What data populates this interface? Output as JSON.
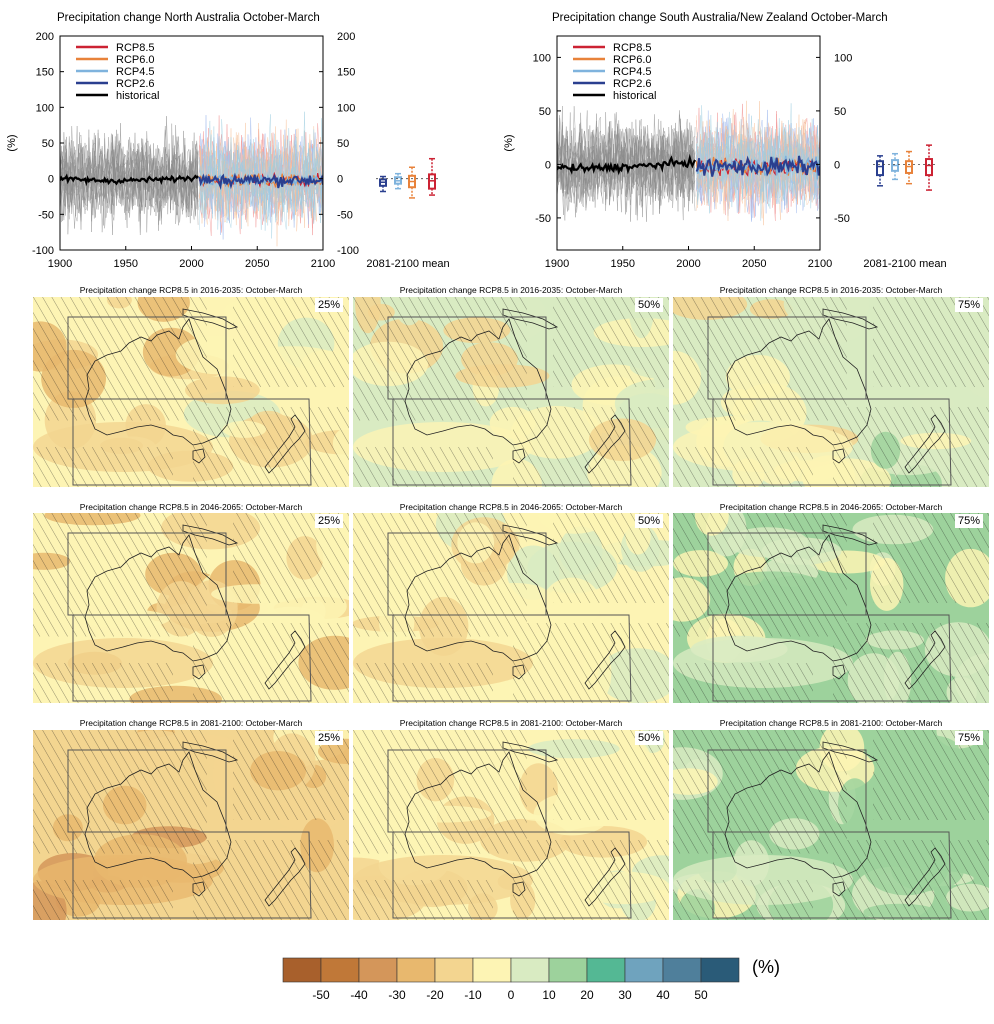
{
  "timeseries": [
    {
      "title": "Precipitation change North Australia October-March",
      "ylabel": "(%)",
      "ylim": [
        -100,
        200
      ],
      "yticks": [
        -100,
        -50,
        0,
        50,
        100,
        150,
        200
      ],
      "xlim": [
        1900,
        2100
      ],
      "xticks": [
        1900,
        1950,
        2000,
        2050,
        2100
      ],
      "right_label": "2081-2100 mean",
      "boxes": [
        {
          "name": "RCP2.6",
          "color": "#2a3f8f",
          "min": -18,
          "q1": -10,
          "med": -5,
          "q3": -1,
          "max": 3
        },
        {
          "name": "RCP4.5",
          "color": "#7fb3dd",
          "min": -14,
          "q1": -7,
          "med": -3,
          "q3": 2,
          "max": 7
        },
        {
          "name": "RCP6.0",
          "color": "#e8823a",
          "min": -27,
          "q1": -12,
          "med": -4,
          "q3": 4,
          "max": 16
        },
        {
          "name": "RCP8.5",
          "color": "#cc2233",
          "min": -23,
          "q1": -14,
          "med": -3,
          "q3": 6,
          "max": 28
        }
      ]
    },
    {
      "title": "Precipitation change South Australia/New Zealand October-March",
      "ylabel": "(%)",
      "ylim": [
        -80,
        120
      ],
      "yticks": [
        -50,
        0,
        50,
        100
      ],
      "xlim": [
        1900,
        2100
      ],
      "xticks": [
        1900,
        1950,
        2000,
        2050,
        2100
      ],
      "right_label": "2081-2100 mean",
      "boxes": [
        {
          "name": "RCP2.6",
          "color": "#2a3f8f",
          "min": -20,
          "q1": -10,
          "med": -2,
          "q3": 3,
          "max": 8
        },
        {
          "name": "RCP4.5",
          "color": "#7fb3dd",
          "min": -14,
          "q1": -6,
          "med": -1,
          "q3": 4,
          "max": 10
        },
        {
          "name": "RCP6.0",
          "color": "#e8823a",
          "min": -18,
          "q1": -8,
          "med": -2,
          "q3": 3,
          "max": 12
        },
        {
          "name": "RCP8.5",
          "color": "#cc2233",
          "min": -24,
          "q1": -10,
          "med": -1,
          "q3": 5,
          "max": 18
        }
      ]
    }
  ],
  "legend": [
    {
      "label": "RCP8.5",
      "color": "#cc2233"
    },
    {
      "label": "RCP6.0",
      "color": "#e8823a"
    },
    {
      "label": "RCP4.5",
      "color": "#7fb3dd"
    },
    {
      "label": "RCP2.6",
      "color": "#2a3f8f"
    },
    {
      "label": "historical",
      "color": "#000000"
    }
  ],
  "maps": [
    {
      "title": "Precipitation change RCP8.5 in 2016-2035: October-March",
      "pct": "25%",
      "level": -10
    },
    {
      "title": "Precipitation change RCP8.5 in 2016-2035: October-March",
      "pct": "50%",
      "level": -4
    },
    {
      "title": "Precipitation change RCP8.5 in 2016-2035: October-March",
      "pct": "75%",
      "level": 4
    },
    {
      "title": "Precipitation change RCP8.5 in 2046-2065: October-March",
      "pct": "25%",
      "level": -14
    },
    {
      "title": "Precipitation change RCP8.5 in 2046-2065: October-March",
      "pct": "50%",
      "level": -5
    },
    {
      "title": "Precipitation change RCP8.5 in 2046-2065: October-March",
      "pct": "75%",
      "level": 6
    },
    {
      "title": "Precipitation change RCP8.5 in 2081-2100: October-March",
      "pct": "25%",
      "level": -20
    },
    {
      "title": "Precipitation change RCP8.5 in 2081-2100: October-March",
      "pct": "50%",
      "level": -7
    },
    {
      "title": "Precipitation change RCP8.5 in 2081-2100: October-March",
      "pct": "75%",
      "level": 10
    }
  ],
  "colorbar": {
    "unit": "(%)",
    "ticks": [
      "-50",
      "-40",
      "-30",
      "-20",
      "-10",
      "0",
      "10",
      "20",
      "30",
      "40",
      "50"
    ],
    "colors": [
      "#a8602c",
      "#c07838",
      "#d4965a",
      "#e8b86e",
      "#f3d590",
      "#fdf4b4",
      "#d9ebc2",
      "#9dd29c",
      "#54b894",
      "#6fa3be",
      "#4f7f9b",
      "#2a5b78"
    ]
  },
  "chart_data": [
    {
      "type": "line",
      "title": "Precipitation change North Australia October-March",
      "ylabel": "(%)",
      "xlim": [
        1900,
        2100
      ],
      "ylim": [
        -100,
        200
      ],
      "series": [
        {
          "name": "historical",
          "x": [
            1900,
            1920,
            1940,
            1960,
            1980,
            2000,
            2005
          ],
          "values": [
            0,
            -2,
            -3,
            -2,
            -1,
            1,
            2
          ]
        },
        {
          "name": "RCP2.6",
          "x": [
            2006,
            2050,
            2100
          ],
          "values": [
            0,
            -3,
            -4
          ]
        },
        {
          "name": "RCP8.5",
          "x": [
            2006,
            2050,
            2100
          ],
          "values": [
            0,
            -2,
            -3
          ]
        }
      ]
    },
    {
      "type": "line",
      "title": "Precipitation change South Australia/New Zealand October-March",
      "ylabel": "(%)",
      "xlim": [
        1900,
        2100
      ],
      "ylim": [
        -80,
        120
      ],
      "series": [
        {
          "name": "historical",
          "x": [
            1900,
            1920,
            1940,
            1960,
            1980,
            2000,
            2005
          ],
          "values": [
            -3,
            -4,
            -3,
            -2,
            0,
            2,
            1
          ]
        },
        {
          "name": "RCP2.6",
          "x": [
            2006,
            2050,
            2100
          ],
          "values": [
            0,
            -1,
            -2
          ]
        },
        {
          "name": "RCP8.5",
          "x": [
            2006,
            2050,
            2100
          ],
          "values": [
            0,
            -1,
            -2
          ]
        }
      ]
    }
  ]
}
